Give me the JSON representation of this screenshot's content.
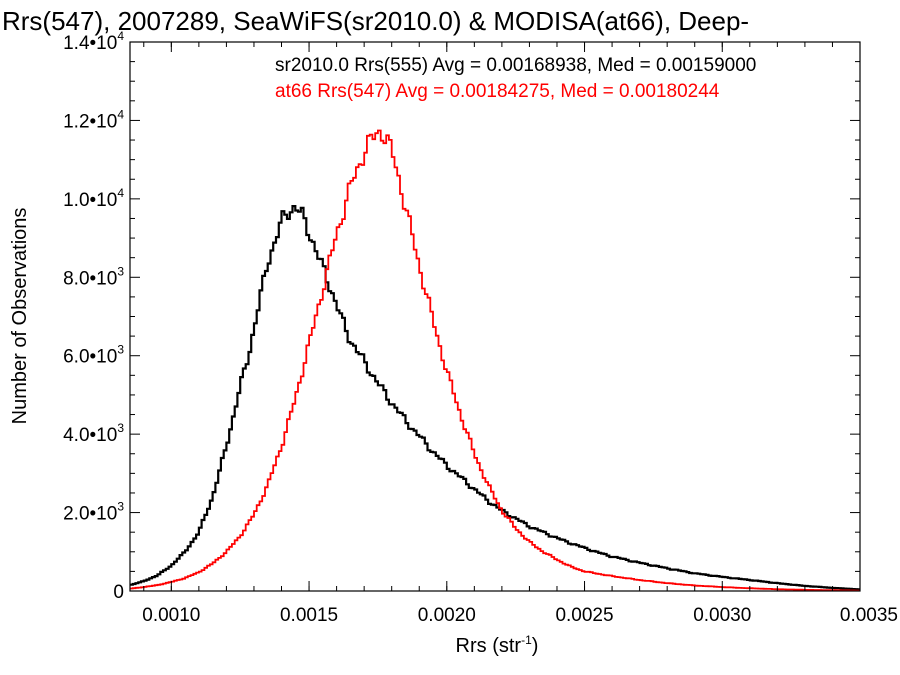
{
  "chart_data": {
    "type": "line",
    "title": "Rrs(547), 2007289, SeaWiFS(sr2010.0) & MODISA(at66), Deep-",
    "xlabel": "Rrs (str",
    "xlabel_sup": "-1",
    "xlabel_suffix": ")",
    "ylabel": "Number of Observations",
    "xlim": [
      0.00085,
      0.0035
    ],
    "ylim": [
      0,
      14000
    ],
    "x_ticks": [
      {
        "value": 0.001,
        "label": "0.0010"
      },
      {
        "value": 0.0015,
        "label": "0.0015"
      },
      {
        "value": 0.002,
        "label": "0.0020"
      },
      {
        "value": 0.0025,
        "label": "0.0025"
      },
      {
        "value": 0.003,
        "label": "0.0030"
      },
      {
        "value": 0.0035,
        "label": "0.0035"
      }
    ],
    "y_ticks": [
      {
        "value": 0,
        "label": "0",
        "exp": ""
      },
      {
        "value": 2000,
        "label": "2.0•10",
        "exp": "3"
      },
      {
        "value": 4000,
        "label": "4.0•10",
        "exp": "3"
      },
      {
        "value": 6000,
        "label": "6.0•10",
        "exp": "3"
      },
      {
        "value": 8000,
        "label": "8.0•10",
        "exp": "3"
      },
      {
        "value": 10000,
        "label": "1.0•10",
        "exp": "4"
      },
      {
        "value": 12000,
        "label": "1.2•10",
        "exp": "4"
      },
      {
        "value": 14000,
        "label": "1.4•10",
        "exp": "4"
      }
    ],
    "annotations": [
      {
        "text": "sr2010.0 Rrs(555) Avg = 0.00168938, Med = 0.00159000",
        "color": "#000000"
      },
      {
        "text": "at66 Rrs(547) Avg = 0.00184275, Med = 0.00180244",
        "color": "#ff0000"
      }
    ],
    "series": [
      {
        "color": "#000000",
        "step": true,
        "x": [
          0.00085,
          0.0009,
          0.00095,
          0.001,
          0.00105,
          0.0011,
          0.00115,
          0.0012,
          0.00125,
          0.00128,
          0.0013,
          0.00133,
          0.00135,
          0.00138,
          0.0014,
          0.00142,
          0.00144,
          0.00145,
          0.00146,
          0.00148,
          0.0015,
          0.00152,
          0.00154,
          0.00156,
          0.00158,
          0.0016,
          0.00162,
          0.00165,
          0.0017,
          0.00175,
          0.0018,
          0.00185,
          0.0019,
          0.00195,
          0.002,
          0.00205,
          0.0021,
          0.00215,
          0.0022,
          0.00225,
          0.0023,
          0.00235,
          0.0024,
          0.00245,
          0.0025,
          0.00255,
          0.0026,
          0.0027,
          0.0028,
          0.0029,
          0.003,
          0.0031,
          0.0032,
          0.0033,
          0.0034,
          0.0035
        ],
        "y": [
          150,
          250,
          400,
          650,
          1000,
          1500,
          2400,
          3700,
          5200,
          6000,
          6700,
          7700,
          8400,
          9000,
          9400,
          9650,
          9750,
          9850,
          9700,
          9500,
          9150,
          8800,
          8400,
          8050,
          7700,
          7300,
          6900,
          6400,
          5850,
          5300,
          4800,
          4350,
          3950,
          3550,
          3200,
          2900,
          2600,
          2300,
          2050,
          1850,
          1650,
          1500,
          1350,
          1220,
          1100,
          980,
          880,
          720,
          580,
          450,
          360,
          280,
          200,
          130,
          80,
          40
        ]
      },
      {
        "color": "#ff0000",
        "step": true,
        "x": [
          0.00085,
          0.0009,
          0.00095,
          0.001,
          0.00105,
          0.0011,
          0.00115,
          0.0012,
          0.00125,
          0.0013,
          0.00135,
          0.0014,
          0.00145,
          0.0015,
          0.00155,
          0.0016,
          0.00165,
          0.0017,
          0.00172,
          0.00174,
          0.00175,
          0.00176,
          0.00177,
          0.00178,
          0.0018,
          0.00182,
          0.00185,
          0.0019,
          0.00195,
          0.002,
          0.00205,
          0.0021,
          0.00215,
          0.0022,
          0.00225,
          0.0023,
          0.00235,
          0.0024,
          0.00245,
          0.0025,
          0.0026,
          0.0027,
          0.0028,
          0.0029,
          0.003,
          0.0031,
          0.0032,
          0.0033,
          0.0034,
          0.0035
        ],
        "y": [
          60,
          100,
          150,
          230,
          330,
          480,
          700,
          1000,
          1400,
          1950,
          2700,
          3700,
          4900,
          6300,
          7700,
          9100,
          10300,
          11200,
          11450,
          11600,
          11700,
          11750,
          11650,
          11550,
          11200,
          10700,
          9800,
          8300,
          6900,
          5600,
          4500,
          3500,
          2700,
          2050,
          1600,
          1250,
          1000,
          800,
          620,
          500,
          380,
          280,
          200,
          140,
          100,
          70,
          45,
          30,
          20,
          10
        ]
      }
    ]
  }
}
